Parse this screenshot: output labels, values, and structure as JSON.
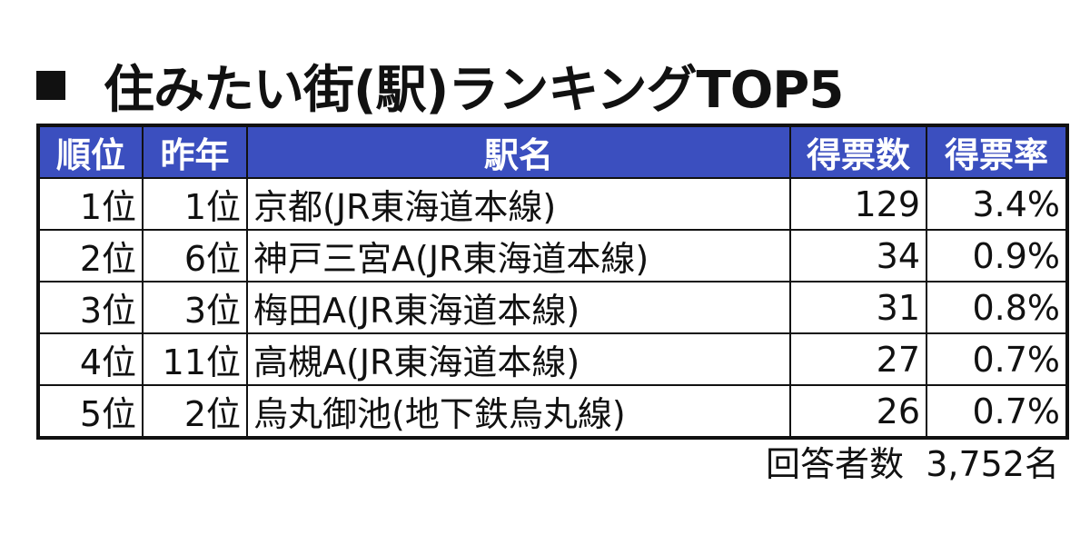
{
  "title": "住みたい街(駅)ランキングTOP5",
  "header_color": "#3b4fbf",
  "table": {
    "columns": [
      "順位",
      "昨年",
      "駅名",
      "得票数",
      "得票率"
    ],
    "rows": [
      [
        "1位",
        "1位",
        "京都(JR東海道本線)",
        "129",
        "3.4%"
      ],
      [
        "2位",
        "6位",
        "神戸三宮A(JR東海道本線)",
        "34",
        "0.9%"
      ],
      [
        "3位",
        "3位",
        "梅田A(JR東海道本線)",
        "31",
        "0.8%"
      ],
      [
        "4位",
        "11位",
        "高槻A(JR東海道本線)",
        "27",
        "0.7%"
      ],
      [
        "5位",
        "2位",
        "烏丸御池(地下鉄烏丸線)",
        "26",
        "0.7%"
      ]
    ]
  },
  "footer": "回答者数  3,752名"
}
